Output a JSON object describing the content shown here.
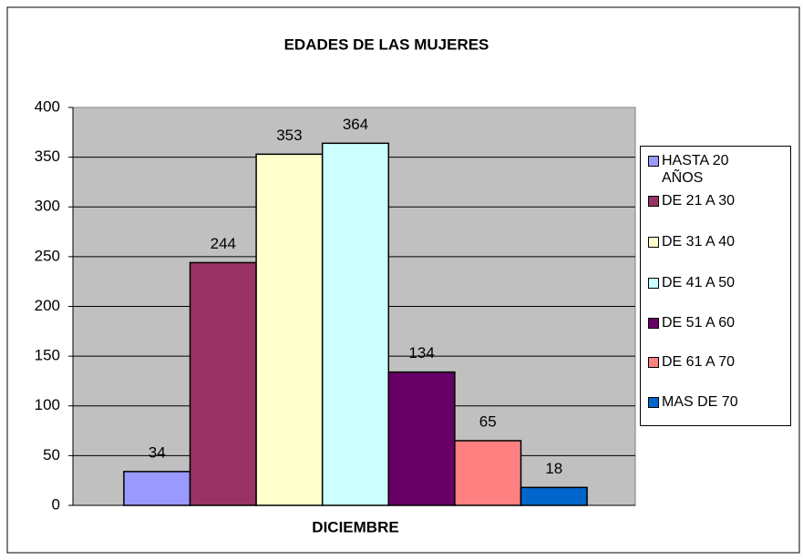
{
  "chart_data": {
    "type": "bar",
    "title": "EDADES DE LAS MUJERES",
    "x_label": "DICIEMBRE",
    "categories": [
      "DICIEMBRE"
    ],
    "series": [
      {
        "name": "HASTA 20 AÑOS",
        "color": "#9999ff",
        "values": [
          34
        ]
      },
      {
        "name": "DE 21 A 30",
        "color": "#993366",
        "values": [
          244
        ]
      },
      {
        "name": "DE 31 A 40",
        "color": "#ffffcc",
        "values": [
          353
        ]
      },
      {
        "name": "DE 41 A 50",
        "color": "#ccffff",
        "values": [
          364
        ]
      },
      {
        "name": "DE 51 A 60",
        "color": "#660066",
        "values": [
          134
        ]
      },
      {
        "name": "DE 61 A 70",
        "color": "#ff8080",
        "values": [
          65
        ]
      },
      {
        "name": "MAS DE 70",
        "color": "#0066cc",
        "values": [
          18
        ]
      }
    ],
    "ylim": [
      0,
      400
    ],
    "yticks": [
      0,
      50,
      100,
      150,
      200,
      250,
      300,
      350,
      400
    ],
    "grid": true,
    "legend": "right"
  }
}
